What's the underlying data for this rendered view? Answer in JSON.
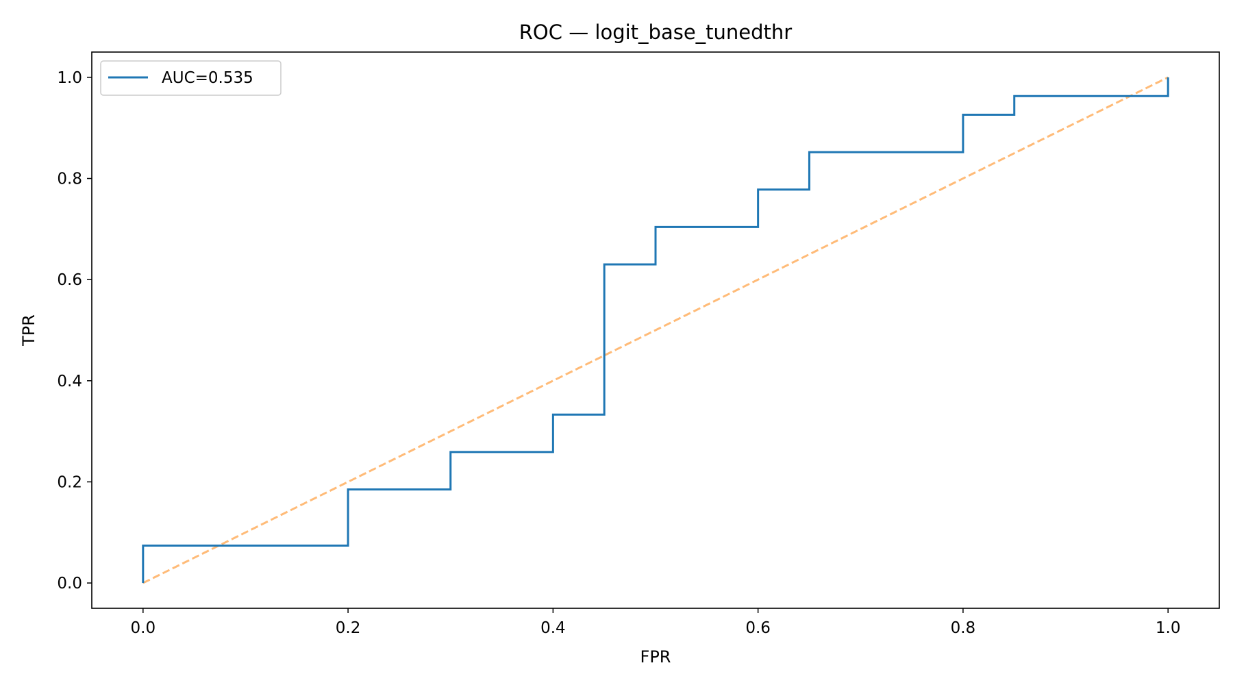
{
  "chart_data": {
    "type": "line",
    "title": "ROC — logit_base_tunedthr",
    "xlabel": "FPR",
    "ylabel": "TPR",
    "xlim": [
      -0.05,
      1.05
    ],
    "ylim": [
      -0.05,
      1.05
    ],
    "xticks": [
      0.0,
      0.2,
      0.4,
      0.6,
      0.8,
      1.0
    ],
    "yticks": [
      0.0,
      0.2,
      0.4,
      0.6,
      0.8,
      1.0
    ],
    "xtick_labels": [
      "0.0",
      "0.2",
      "0.4",
      "0.6",
      "0.8",
      "1.0"
    ],
    "ytick_labels": [
      "0.0",
      "0.2",
      "0.4",
      "0.6",
      "0.8",
      "1.0"
    ],
    "grid": false,
    "legend_position": "upper-left",
    "series": [
      {
        "name": "AUC=0.535",
        "style": "step",
        "color": "#1f77b4",
        "x": [
          0.0,
          0.0,
          0.2,
          0.2,
          0.3,
          0.3,
          0.4,
          0.4,
          0.45,
          0.45,
          0.5,
          0.5,
          0.6,
          0.6,
          0.65,
          0.65,
          0.8,
          0.8,
          0.85,
          0.85,
          1.0,
          1.0
        ],
        "y": [
          0.0,
          0.074,
          0.074,
          0.185,
          0.185,
          0.259,
          0.259,
          0.333,
          0.333,
          0.63,
          0.63,
          0.704,
          0.704,
          0.778,
          0.778,
          0.852,
          0.852,
          0.926,
          0.926,
          0.963,
          0.963,
          1.0
        ]
      },
      {
        "style": "dashed",
        "color": "#ffbb78",
        "x": [
          0.0,
          1.0
        ],
        "y": [
          0.0,
          1.0
        ]
      }
    ]
  }
}
